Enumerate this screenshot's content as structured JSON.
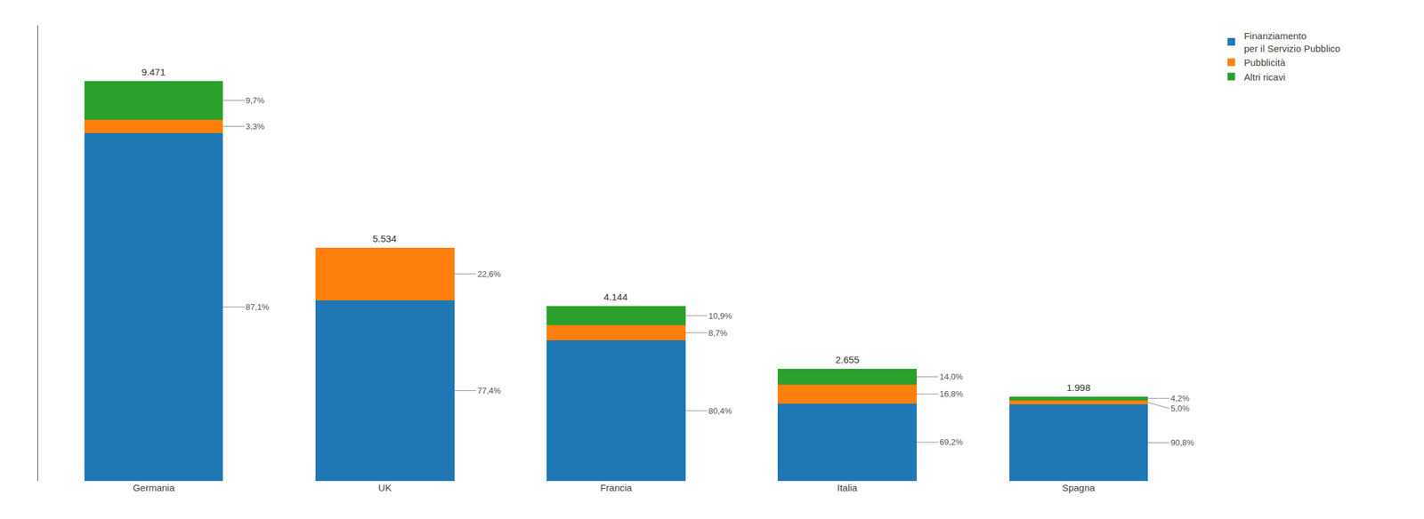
{
  "chart_data": {
    "type": "bar",
    "stacked": true,
    "categories": [
      "Germania",
      "UK",
      "Francia",
      "Italia",
      "Spagna"
    ],
    "series": [
      {
        "name": "Finanziamento\nper il Servizio Pubblico",
        "values": [
          8.249241,
          4.283316,
          3.331776,
          1.83726,
          1.814184
        ],
        "annotations": [
          "87,1%",
          "77,4%",
          "80,4%",
          "69,2%",
          "90,8%"
        ]
      },
      {
        "name": "Pubblicità",
        "values": [
          0.312543,
          1.250684,
          0.360528,
          0.44604,
          0.0999
        ],
        "annotations": [
          "3,3%",
          "22,6%",
          "8,7%",
          "16,8%",
          "5,0%"
        ]
      },
      {
        "name": "Altri ricavi",
        "values": [
          0.918687,
          0,
          0.451696,
          0.3717,
          0.083916
        ],
        "annotations": [
          "9,7%",
          null,
          "10,9%",
          "14,0%",
          "4,2%"
        ]
      }
    ],
    "totals": [
      9.471,
      5.534,
      4.144,
      2.655,
      1.998
    ],
    "ylim": [
      0,
      10.8
    ],
    "grid": false,
    "legend": "right",
    "tick_labels": "x"
  }
}
